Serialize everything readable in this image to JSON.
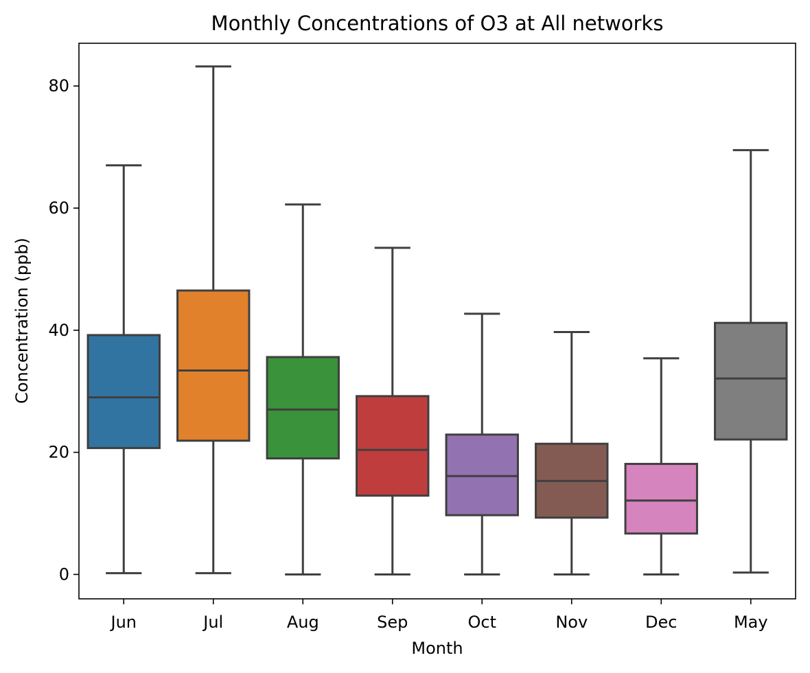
{
  "chart_data": {
    "type": "boxplot",
    "title": "Monthly Concentrations of O3 at All networks",
    "xlabel": "Month",
    "ylabel": "Concentration (ppb)",
    "ylim": [
      -4,
      87
    ],
    "yticks": [
      "0",
      "20",
      "40",
      "60",
      "80"
    ],
    "grid": false,
    "legend": "none",
    "edge_color": "#3f3f3f",
    "categories": [
      "Jun",
      "Jul",
      "Aug",
      "Sep",
      "Oct",
      "Nov",
      "Dec",
      "May"
    ],
    "colors": [
      "#3274a1",
      "#e1812c",
      "#3a923a",
      "#c03d3e",
      "#9372b2",
      "#845b53",
      "#d684bd",
      "#7f7f7f"
    ],
    "boxes": [
      {
        "whisker_low": 0.2,
        "q1": 20.7,
        "median": 29.0,
        "q3": 39.2,
        "whisker_high": 67.0
      },
      {
        "whisker_low": 0.2,
        "q1": 21.9,
        "median": 33.4,
        "q3": 46.5,
        "whisker_high": 83.2
      },
      {
        "whisker_low": 0.0,
        "q1": 19.0,
        "median": 27.0,
        "q3": 35.6,
        "whisker_high": 60.6
      },
      {
        "whisker_low": 0.0,
        "q1": 12.9,
        "median": 20.4,
        "q3": 29.2,
        "whisker_high": 53.5
      },
      {
        "whisker_low": 0.0,
        "q1": 9.7,
        "median": 16.1,
        "q3": 22.9,
        "whisker_high": 42.7
      },
      {
        "whisker_low": 0.0,
        "q1": 9.3,
        "median": 15.3,
        "q3": 21.4,
        "whisker_high": 39.7
      },
      {
        "whisker_low": 0.0,
        "q1": 6.7,
        "median": 12.1,
        "q3": 18.1,
        "whisker_high": 35.4
      },
      {
        "whisker_low": 0.3,
        "q1": 22.1,
        "median": 32.1,
        "q3": 41.2,
        "whisker_high": 69.5
      }
    ]
  }
}
